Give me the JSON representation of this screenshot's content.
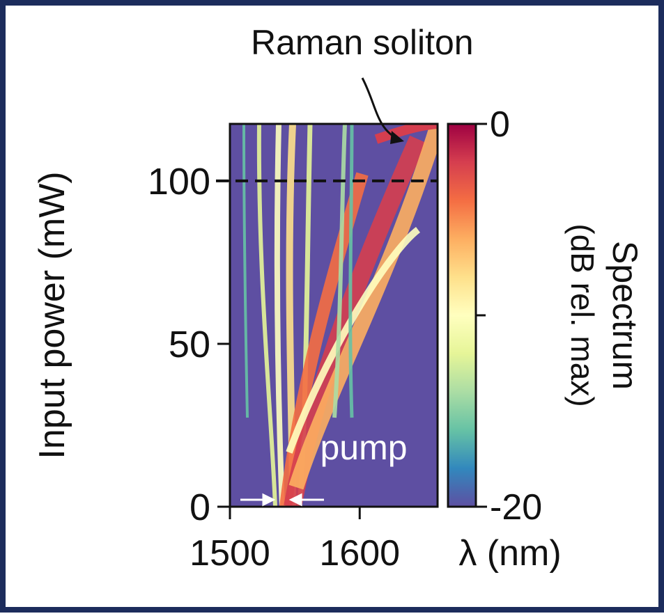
{
  "chart_data": {
    "type": "heatmap",
    "ylabel": "Input power (mW)",
    "xlabel": "λ (nm)",
    "xlim": [
      1500,
      1660
    ],
    "xticks": [
      1500,
      1600
    ],
    "ylim": [
      0,
      117.5
    ],
    "yticks": [
      0,
      50,
      100
    ],
    "hline": 100,
    "colorbar_label": [
      "Spectrum",
      "(dB rel. max)"
    ],
    "clim": [
      -20,
      0
    ],
    "cticks": [
      0,
      -20
    ],
    "cminor_ticks": [
      -10
    ],
    "colormap": [
      "#5e4fa2",
      "#3288bd",
      "#66c2a5",
      "#abdda4",
      "#e6f598",
      "#ffffbf",
      "#fee08b",
      "#fdae61",
      "#f46d43",
      "#d53e4f",
      "#9e0142"
    ],
    "annotations": [
      "Raman soliton",
      "pump"
    ]
  }
}
